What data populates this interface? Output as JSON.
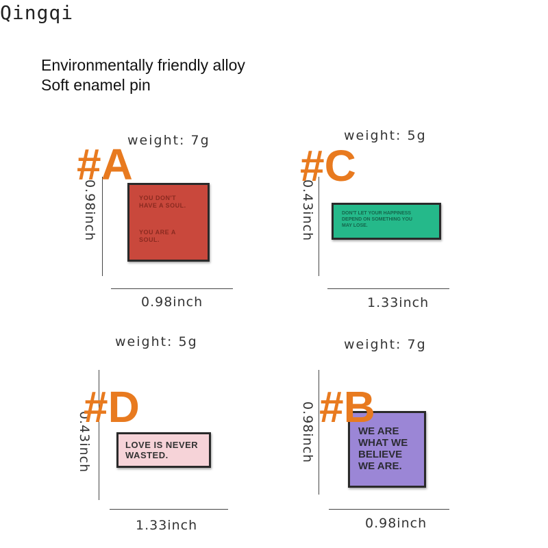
{
  "brand": "Qingqi",
  "headings": {
    "line1": "Environmentally friendly alloy",
    "line2": "Soft enamel pin"
  },
  "items": {
    "a": {
      "tag": "#A",
      "weight": "weight:  7g",
      "height": "0.98inch",
      "width": "0.98inch",
      "color": "#c9483c",
      "text1": "YOU DON'T\nHAVE A SOUL.",
      "text2": "YOU ARE A\nSOUL."
    },
    "c": {
      "tag": "#C",
      "weight": "weight:  5g",
      "height": "0.43inch",
      "width": "1.33inch",
      "color": "#25b98a",
      "text": "DON'T LET YOUR HAPPINESS\nDEPEND ON SOMETHING YOU\nMAY LOSE."
    },
    "d": {
      "tag": "#D",
      "weight": "weight:  5g",
      "height": "0.43inch",
      "width": "1.33inch",
      "color": "#f6d3d8",
      "text": "LOVE IS NEVER\nWASTED."
    },
    "b": {
      "tag": "#B",
      "weight": "weight:  7g",
      "height": "0.98inch",
      "width": "0.98inch",
      "color": "#9b86d6",
      "text": "WE ARE\nWHAT WE\nBELIEVE\nWE ARE."
    }
  }
}
